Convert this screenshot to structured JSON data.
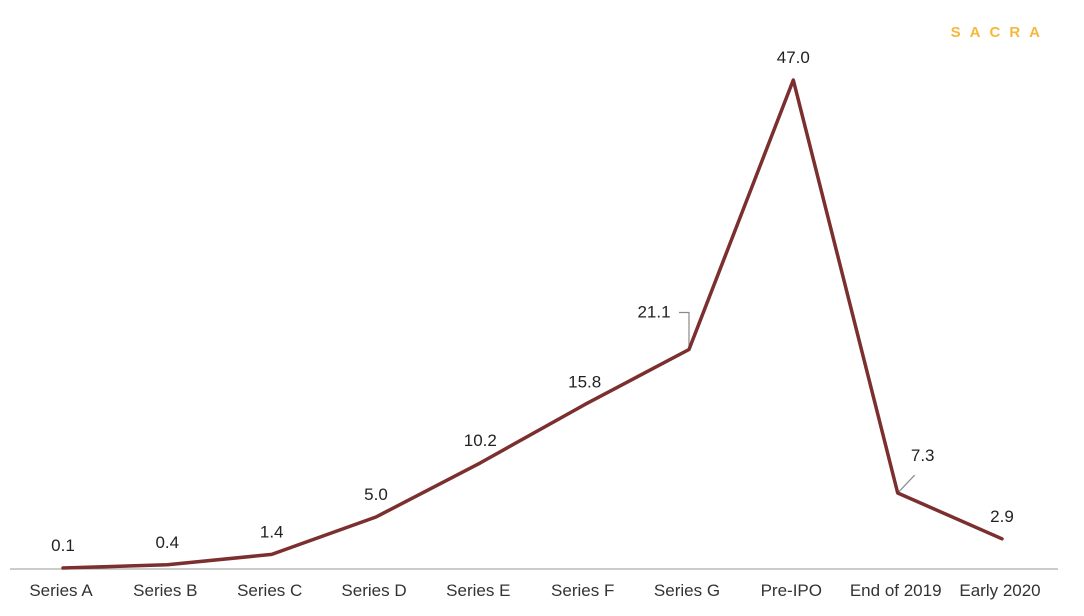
{
  "brand": {
    "name": "SACRA",
    "color": "#f5b83d"
  },
  "colors": {
    "line": "#7b2f2f",
    "axis": "#999999",
    "leader": "#8a8a8a"
  },
  "chart_data": {
    "type": "line",
    "title": "",
    "xlabel": "",
    "ylabel": "",
    "categories": [
      "Series A",
      "Series B",
      "Series C",
      "Series D",
      "Series E",
      "Series F",
      "Series G",
      "Pre-IPO",
      "End of 2019",
      "Early 2020"
    ],
    "values": [
      0.1,
      0.4,
      1.4,
      5.0,
      10.2,
      15.8,
      21.1,
      47.0,
      7.3,
      2.9
    ],
    "labels": [
      "0.1",
      "0.4",
      "1.4",
      "5.0",
      "10.2",
      "15.8",
      "21.1",
      "47.0",
      "7.3",
      "2.9"
    ],
    "ylim": [
      0,
      47
    ],
    "grid": false,
    "legend": "none"
  }
}
